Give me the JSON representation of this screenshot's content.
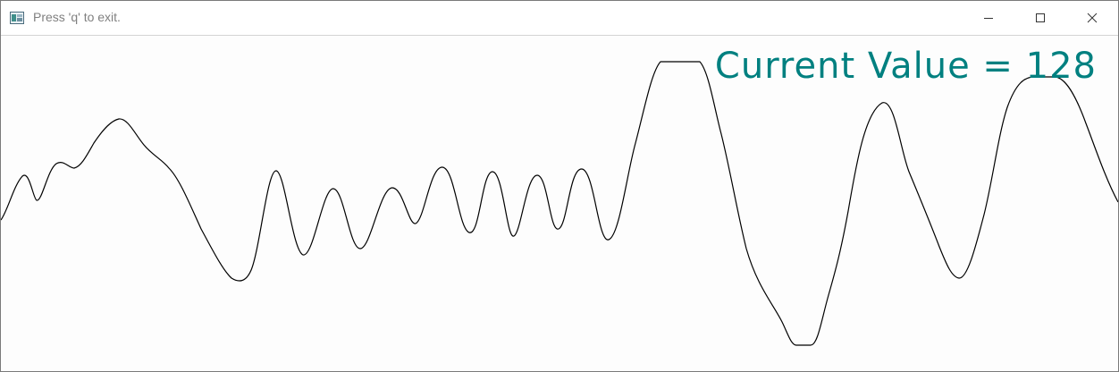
{
  "window": {
    "title": "Press 'q' to exit.",
    "icon": "app-window-icon",
    "controls": {
      "minimize_icon": "minimize-icon",
      "maximize_icon": "maximize-icon",
      "close_icon": "close-icon"
    }
  },
  "canvas": {
    "readout_label": "Current Value = 128",
    "readout_color": "#008080",
    "line_color": "#000000"
  }
}
